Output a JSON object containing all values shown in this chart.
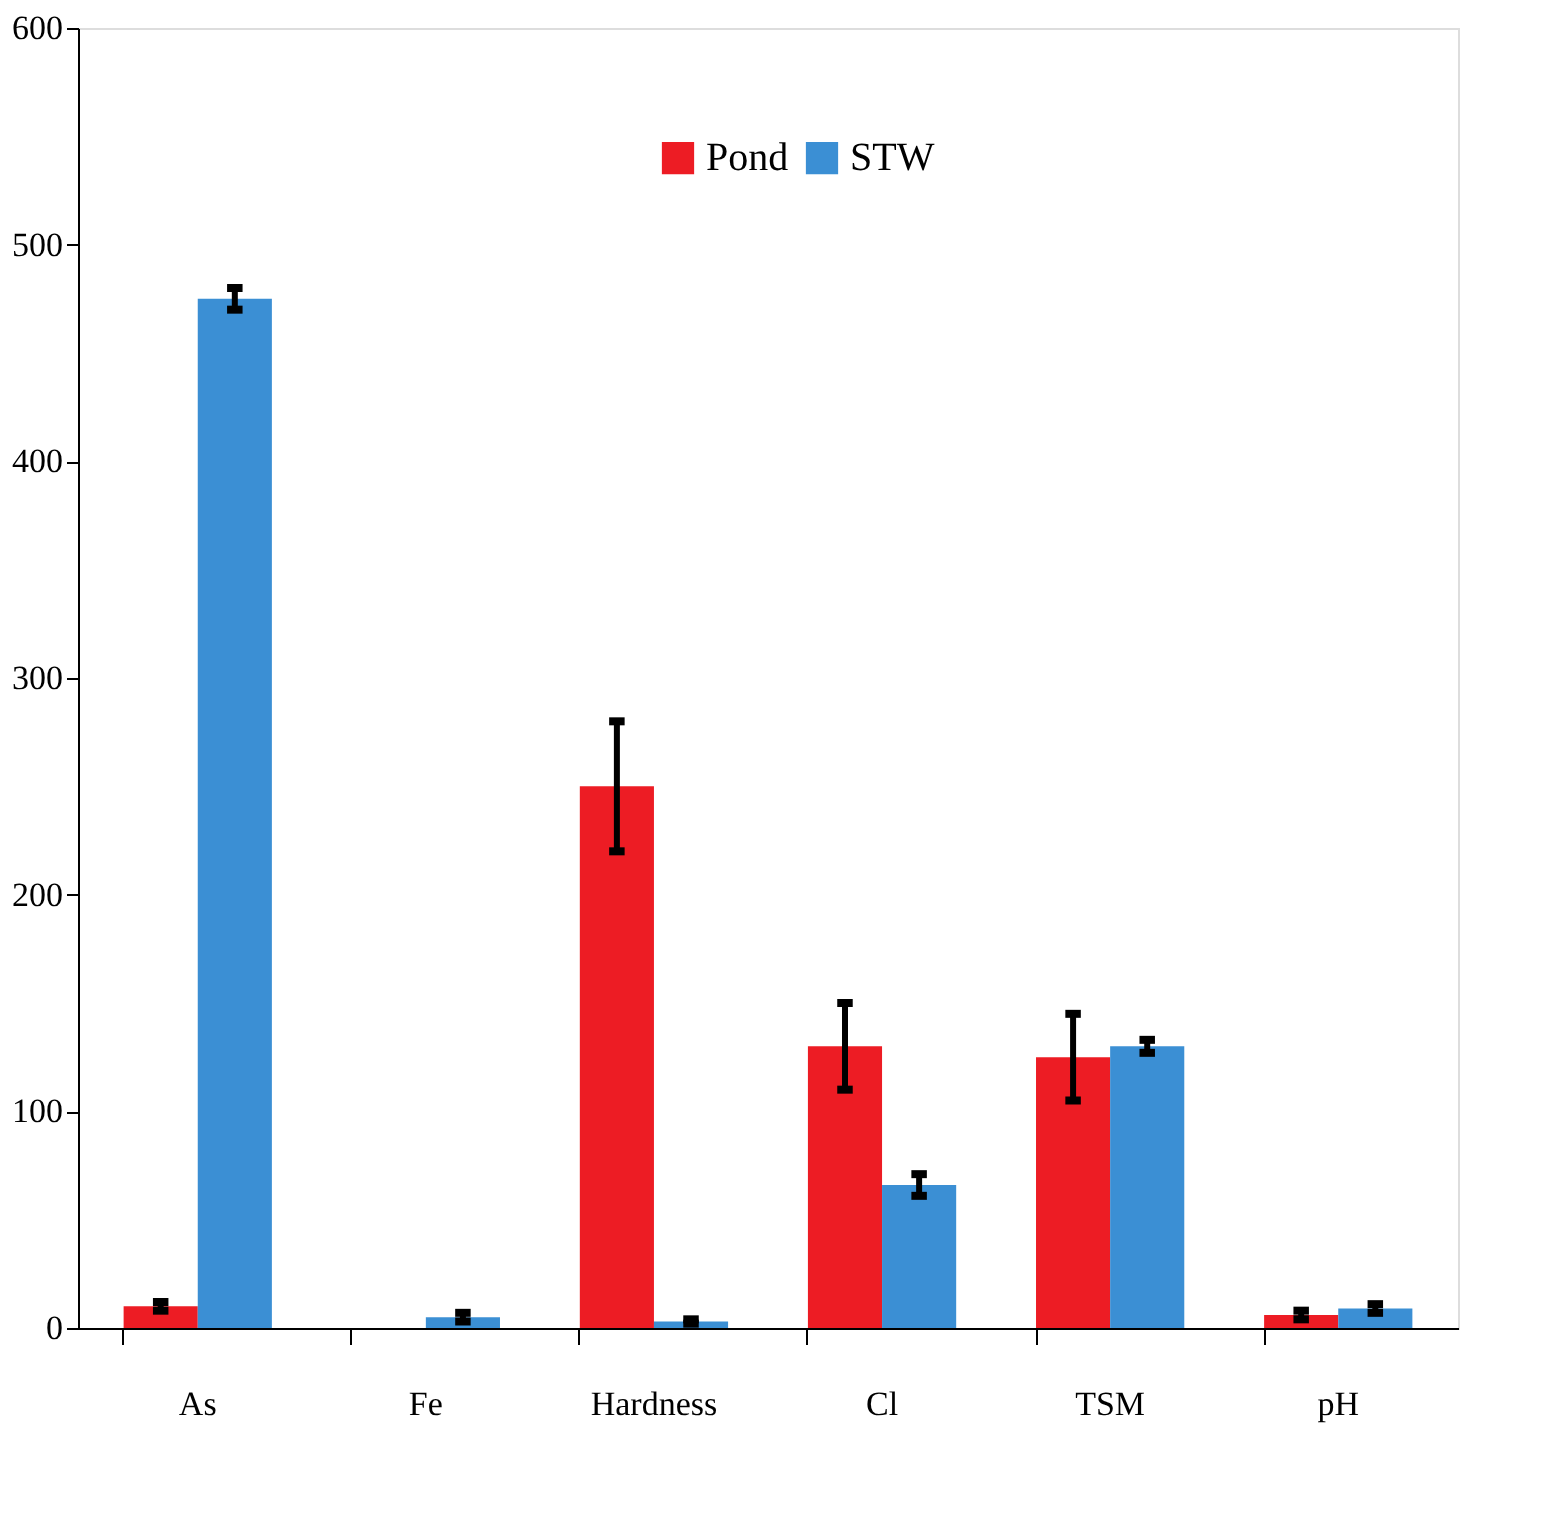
{
  "chart_data": {
    "type": "bar",
    "categories": [
      "As",
      "Fe",
      "Hardness",
      "Cl",
      "TSM",
      "pH"
    ],
    "series": [
      {
        "name": "Pond",
        "color": "#ed1c24",
        "values": [
          10,
          0,
          250,
          130,
          125,
          6
        ],
        "errors": [
          2,
          null,
          30,
          20,
          20,
          2
        ]
      },
      {
        "name": "STW",
        "color": "#3b8fd4",
        "values": [
          475,
          5,
          3,
          66,
          130,
          9
        ],
        "errors": [
          5,
          2,
          1,
          5,
          3,
          2
        ]
      }
    ],
    "ylim": [
      0,
      600
    ],
    "yticks": [
      0,
      100,
      200,
      300,
      400,
      500,
      600
    ],
    "grid": false,
    "legend": "top"
  }
}
